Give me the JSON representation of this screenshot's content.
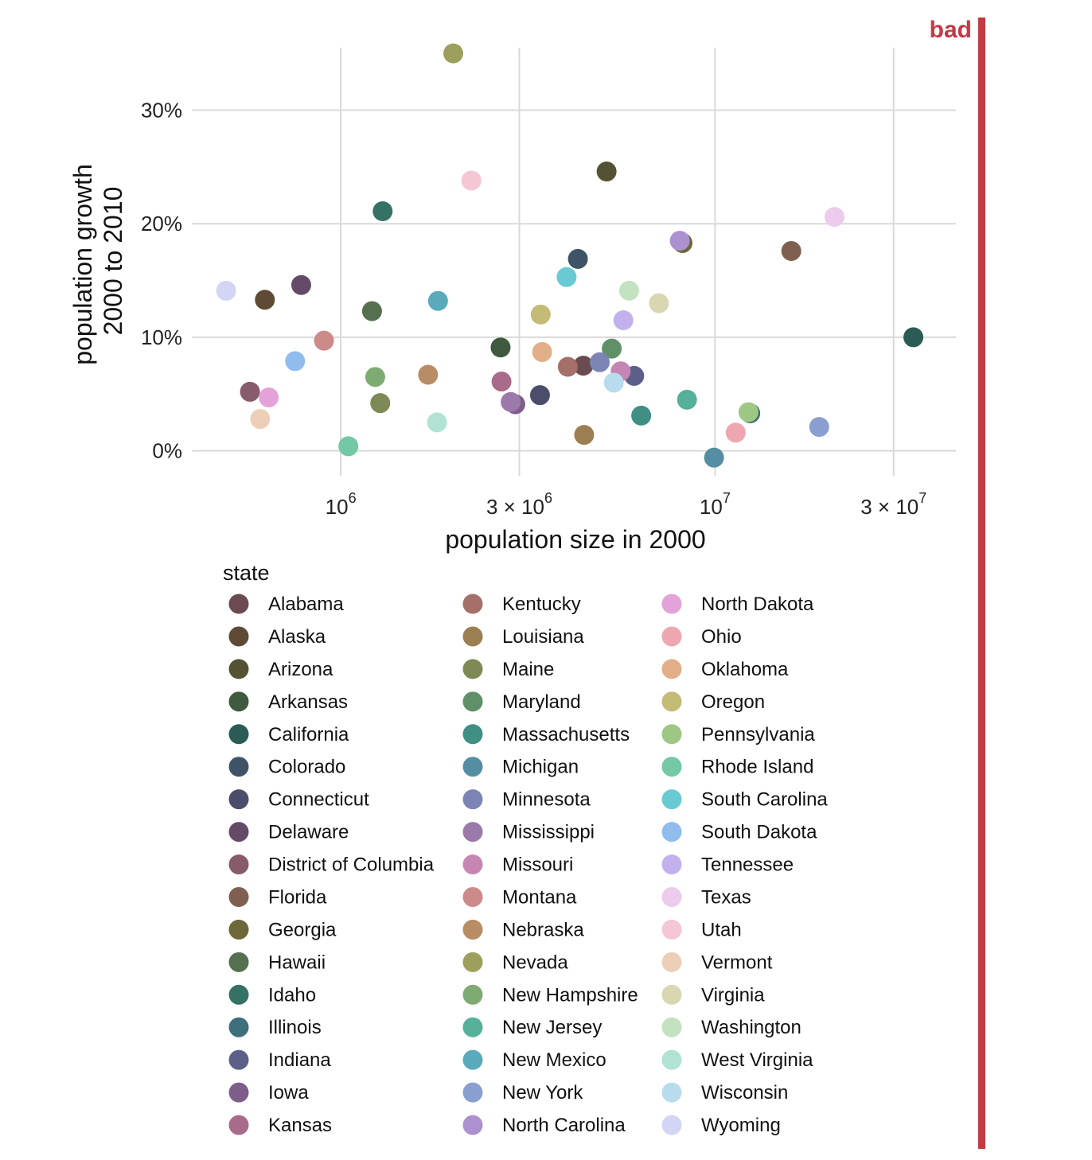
{
  "chart_data": {
    "type": "scatter",
    "xlabel": "population size in 2000",
    "ylabel_lines": [
      "population growth",
      "2000 to 2010"
    ],
    "x_scale": "log10",
    "xlim": [
      400000,
      44000000
    ],
    "ylim": [
      -0.022,
      0.355
    ],
    "x_ticks": [
      {
        "value": 1000000,
        "base": "10",
        "coef": "",
        "exp": "6"
      },
      {
        "value": 3000000,
        "base": "10",
        "coef": "3 × ",
        "exp": "6"
      },
      {
        "value": 10000000,
        "base": "10",
        "coef": "",
        "exp": "7"
      },
      {
        "value": 30000000,
        "base": "10",
        "coef": "3 × ",
        "exp": "7"
      }
    ],
    "y_ticks": [
      {
        "value": 0.0,
        "label": "0%"
      },
      {
        "value": 0.1,
        "label": "10%"
      },
      {
        "value": 0.2,
        "label": "20%"
      },
      {
        "value": 0.3,
        "label": "30%"
      }
    ],
    "grid": true,
    "legend_title": "state",
    "legend_columns": 3,
    "annotation": {
      "label": "bad",
      "color": "#c23a44"
    },
    "points": [
      {
        "state": "Alabama",
        "x": 4447000,
        "y": 0.075,
        "color": "#6b4a52"
      },
      {
        "state": "Alaska",
        "x": 627000,
        "y": 0.133,
        "color": "#5e4a35"
      },
      {
        "state": "Arizona",
        "x": 5131000,
        "y": 0.246,
        "color": "#545233"
      },
      {
        "state": "Arkansas",
        "x": 2673000,
        "y": 0.091,
        "color": "#3f5a3e"
      },
      {
        "state": "California",
        "x": 33872000,
        "y": 0.1,
        "color": "#2b5b55"
      },
      {
        "state": "Colorado",
        "x": 4301000,
        "y": 0.169,
        "color": "#3e5466"
      },
      {
        "state": "Connecticut",
        "x": 3406000,
        "y": 0.049,
        "color": "#4c4d6b"
      },
      {
        "state": "Delaware",
        "x": 784000,
        "y": 0.146,
        "color": "#654a68"
      },
      {
        "state": "District of Columbia",
        "x": 572000,
        "y": 0.052,
        "color": "#885a6e"
      },
      {
        "state": "Florida",
        "x": 15982000,
        "y": 0.176,
        "color": "#7f6050"
      },
      {
        "state": "Georgia",
        "x": 8186000,
        "y": 0.183,
        "color": "#6e6739"
      },
      {
        "state": "Hawaii",
        "x": 1212000,
        "y": 0.123,
        "color": "#55704e"
      },
      {
        "state": "Idaho",
        "x": 1294000,
        "y": 0.211,
        "color": "#357266"
      },
      {
        "state": "Illinois",
        "x": 12419000,
        "y": 0.033,
        "color": "#3e6f7c"
      },
      {
        "state": "Indiana",
        "x": 6080000,
        "y": 0.066,
        "color": "#5c6088"
      },
      {
        "state": "Iowa",
        "x": 2926000,
        "y": 0.041,
        "color": "#7d5e8a"
      },
      {
        "state": "Kansas",
        "x": 2688000,
        "y": 0.061,
        "color": "#a86b8a"
      },
      {
        "state": "Kentucky",
        "x": 4042000,
        "y": 0.074,
        "color": "#a47068"
      },
      {
        "state": "Louisiana",
        "x": 4469000,
        "y": 0.014,
        "color": "#9b7e52"
      },
      {
        "state": "Maine",
        "x": 1275000,
        "y": 0.042,
        "color": "#7d8a55"
      },
      {
        "state": "Maryland",
        "x": 5296000,
        "y": 0.09,
        "color": "#5f9068"
      },
      {
        "state": "Massachusetts",
        "x": 6349000,
        "y": 0.031,
        "color": "#3f8f85"
      },
      {
        "state": "Michigan",
        "x": 9938000,
        "y": -0.006,
        "color": "#558ea2"
      },
      {
        "state": "Minnesota",
        "x": 4919000,
        "y": 0.078,
        "color": "#7b84b3"
      },
      {
        "state": "Mississippi",
        "x": 2845000,
        "y": 0.043,
        "color": "#9c79ab"
      },
      {
        "state": "Missouri",
        "x": 5595000,
        "y": 0.07,
        "color": "#c686b4"
      },
      {
        "state": "Montana",
        "x": 902000,
        "y": 0.097,
        "color": "#cc8a88"
      },
      {
        "state": "Nebraska",
        "x": 1711000,
        "y": 0.067,
        "color": "#b98d63"
      },
      {
        "state": "Nevada",
        "x": 1998000,
        "y": 0.35,
        "color": "#9ca05c"
      },
      {
        "state": "New Hampshire",
        "x": 1236000,
        "y": 0.065,
        "color": "#7eab74"
      },
      {
        "state": "New Jersey",
        "x": 8414000,
        "y": 0.045,
        "color": "#56b09a"
      },
      {
        "state": "New Mexico",
        "x": 1819000,
        "y": 0.132,
        "color": "#5aaabc"
      },
      {
        "state": "New York",
        "x": 18976000,
        "y": 0.021,
        "color": "#889fd0"
      },
      {
        "state": "North Carolina",
        "x": 8049000,
        "y": 0.185,
        "color": "#ad90d0"
      },
      {
        "state": "North Dakota",
        "x": 642000,
        "y": 0.047,
        "color": "#e3a3d8"
      },
      {
        "state": "Ohio",
        "x": 11353000,
        "y": 0.016,
        "color": "#eea7b0"
      },
      {
        "state": "Oklahoma",
        "x": 3451000,
        "y": 0.087,
        "color": "#e2ae88"
      },
      {
        "state": "Oregon",
        "x": 3421000,
        "y": 0.12,
        "color": "#c4bb77"
      },
      {
        "state": "Pennsylvania",
        "x": 12281000,
        "y": 0.034,
        "color": "#9ec784"
      },
      {
        "state": "Rhode Island",
        "x": 1048000,
        "y": 0.004,
        "color": "#73c8a6"
      },
      {
        "state": "South Carolina",
        "x": 4012000,
        "y": 0.153,
        "color": "#69cad3"
      },
      {
        "state": "South Dakota",
        "x": 755000,
        "y": 0.079,
        "color": "#91bcee"
      },
      {
        "state": "Tennessee",
        "x": 5689000,
        "y": 0.115,
        "color": "#c3b1ee"
      },
      {
        "state": "Texas",
        "x": 20852000,
        "y": 0.206,
        "color": "#eccbed"
      },
      {
        "state": "Utah",
        "x": 2233000,
        "y": 0.238,
        "color": "#f5c6d4"
      },
      {
        "state": "Vermont",
        "x": 609000,
        "y": 0.028,
        "color": "#edcfb7"
      },
      {
        "state": "Virginia",
        "x": 7079000,
        "y": 0.13,
        "color": "#d8d7b2"
      },
      {
        "state": "Washington",
        "x": 5894000,
        "y": 0.141,
        "color": "#c3e2bf"
      },
      {
        "state": "West Virginia",
        "x": 1808000,
        "y": 0.025,
        "color": "#b0e3d5"
      },
      {
        "state": "Wisconsin",
        "x": 5364000,
        "y": 0.06,
        "color": "#b8dcee"
      },
      {
        "state": "Wyoming",
        "x": 494000,
        "y": 0.141,
        "color": "#d3d5f5"
      }
    ]
  }
}
